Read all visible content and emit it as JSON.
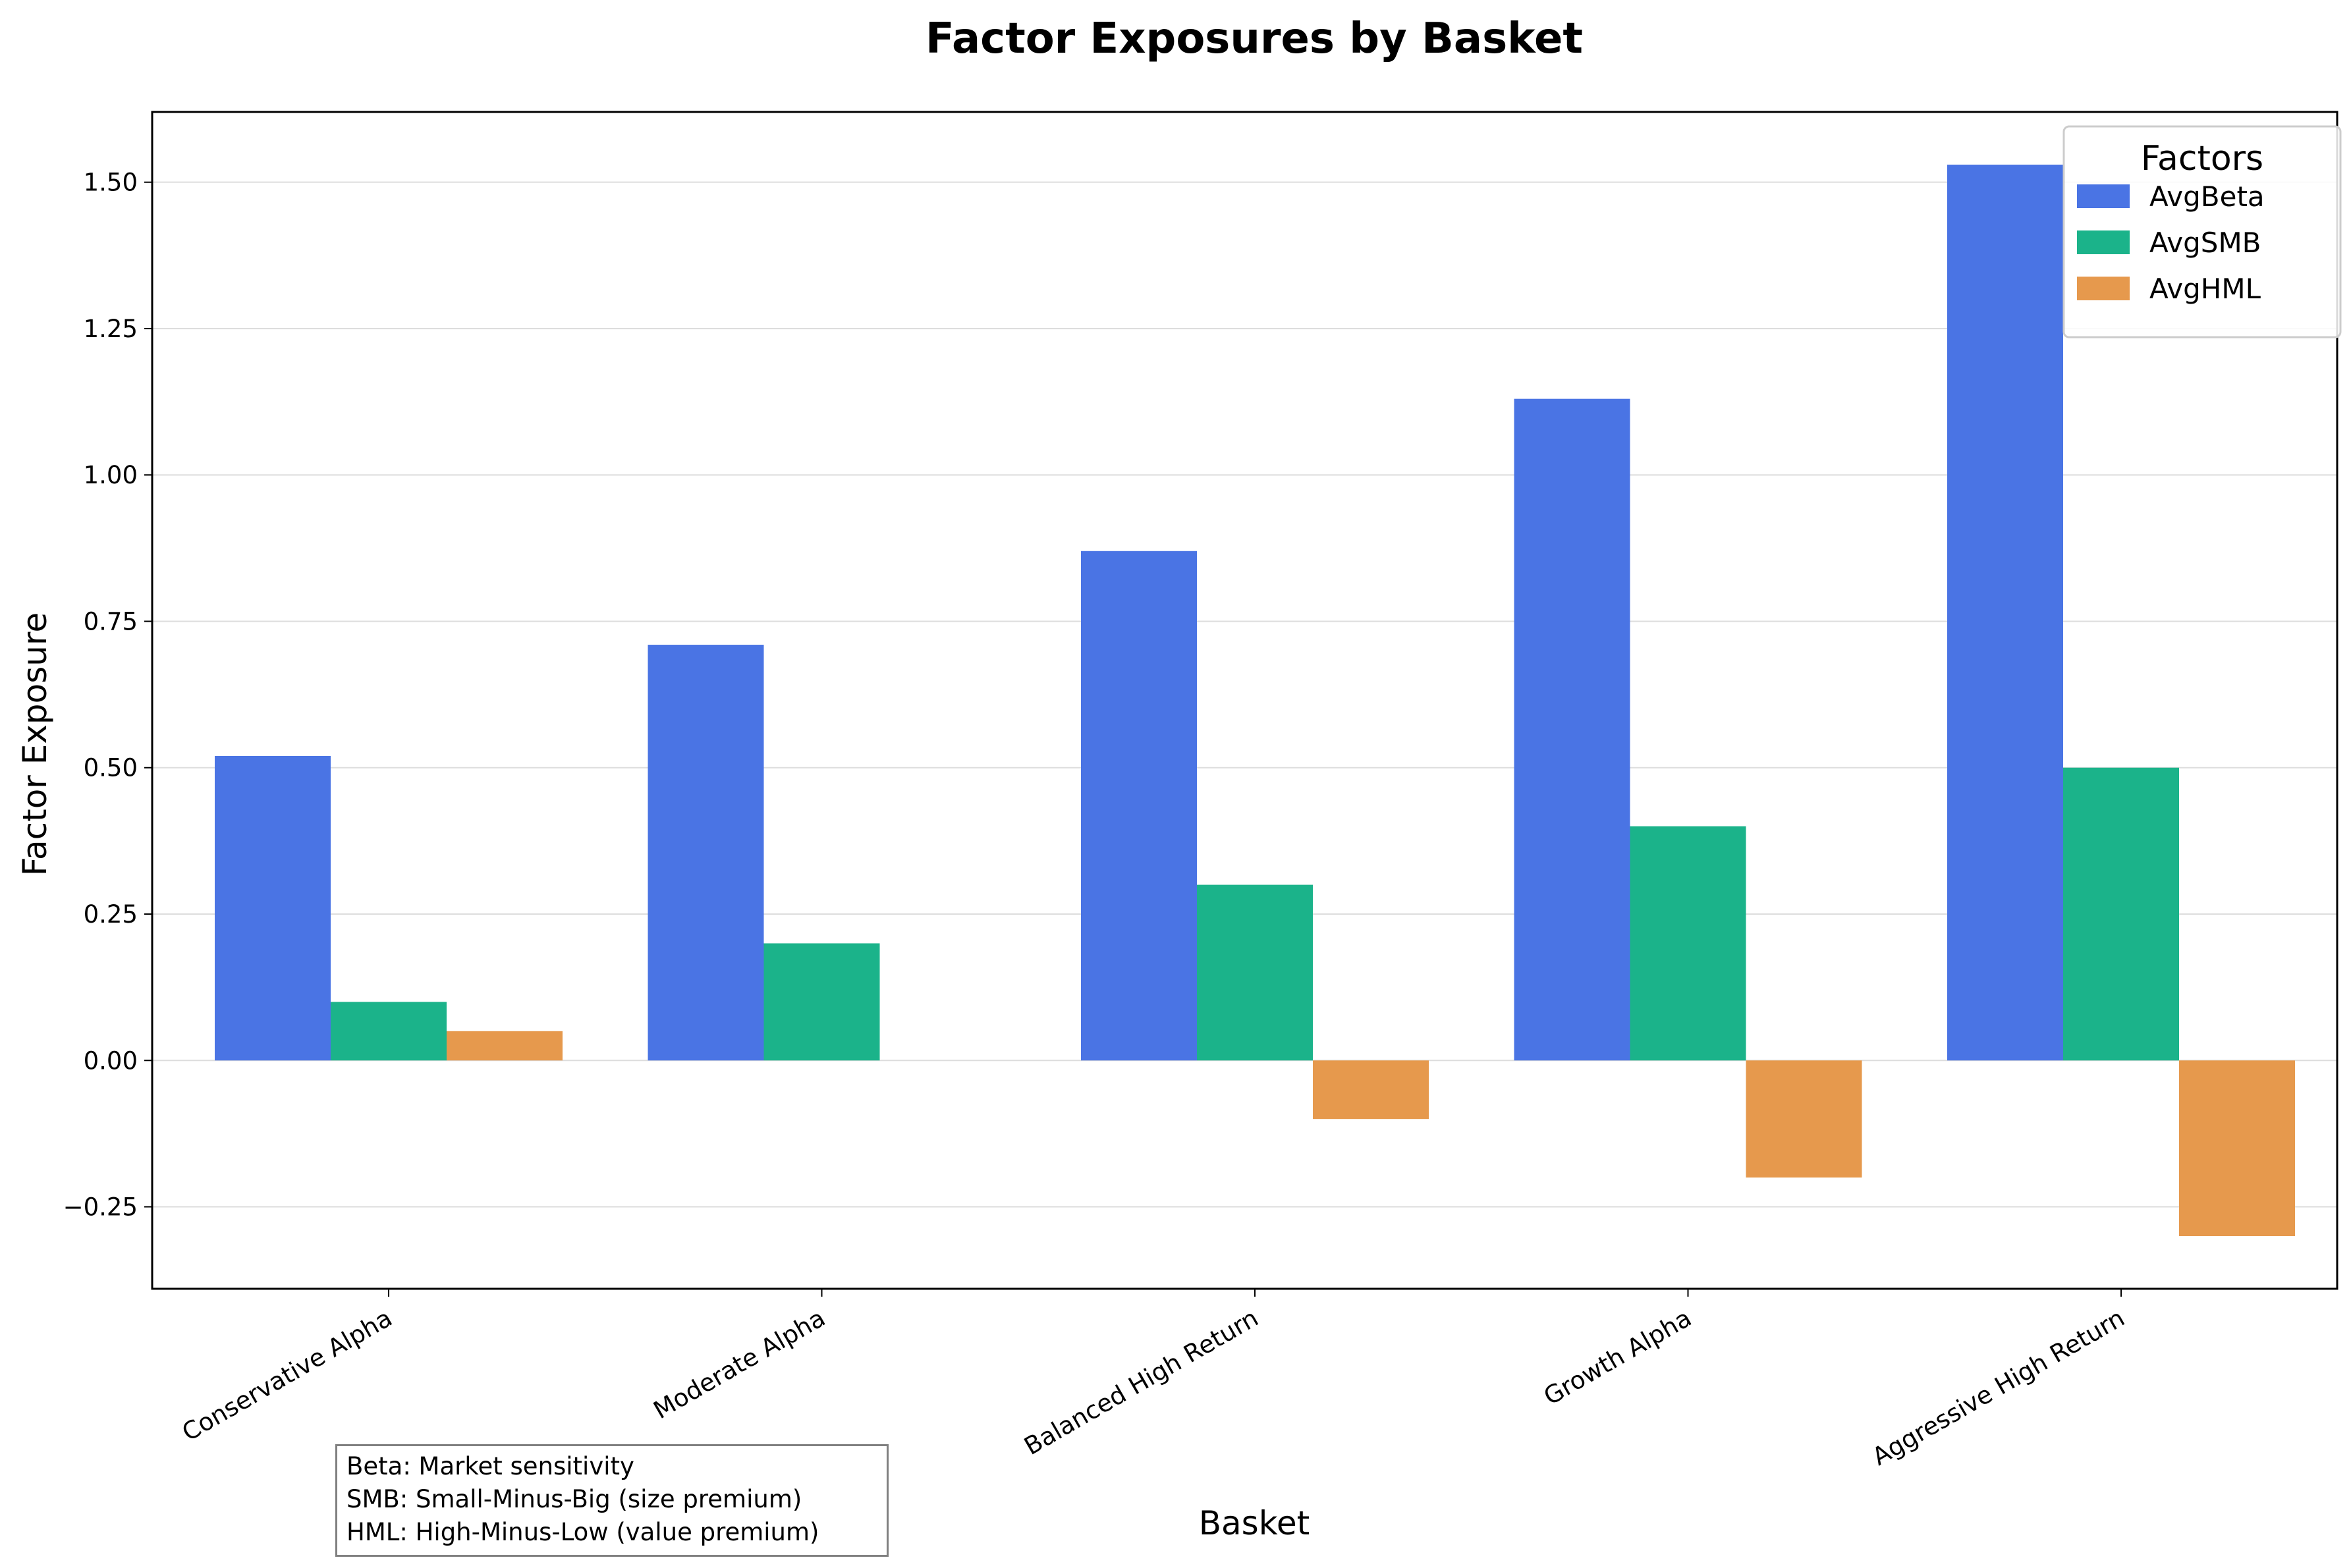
{
  "chart_data": {
    "type": "bar",
    "title": "Factor Exposures by Basket",
    "xlabel": "Basket",
    "ylabel": "Factor Exposure",
    "categories": [
      "Conservative Alpha",
      "Moderate Alpha",
      "Balanced High Return",
      "Growth Alpha",
      "Aggressive High Return"
    ],
    "series": [
      {
        "name": "AvgBeta",
        "color": "#4A74E4",
        "values": [
          0.52,
          0.71,
          0.87,
          1.13,
          1.53
        ]
      },
      {
        "name": "AvgSMB",
        "color": "#1BB38A",
        "values": [
          0.1,
          0.2,
          0.3,
          0.4,
          0.5
        ]
      },
      {
        "name": "AvgHML",
        "color": "#E6994D",
        "values": [
          0.05,
          0.0,
          -0.1,
          -0.2,
          -0.3
        ]
      }
    ],
    "ylim": [
      -0.39,
      1.62
    ],
    "yticks": [
      -0.25,
      0.0,
      0.25,
      0.5,
      0.75,
      1.0,
      1.25,
      1.5
    ],
    "ytick_labels": [
      "−0.25",
      "0.00",
      "0.25",
      "0.50",
      "0.75",
      "1.00",
      "1.25",
      "1.50"
    ],
    "grid": "horizontal",
    "legend": {
      "title": "Factors",
      "position": "top-right"
    }
  },
  "annotation": {
    "lines": [
      "Beta: Market sensitivity",
      "SMB: Small-Minus-Big (size premium)",
      "HML: High-Minus-Low (value premium)"
    ]
  }
}
